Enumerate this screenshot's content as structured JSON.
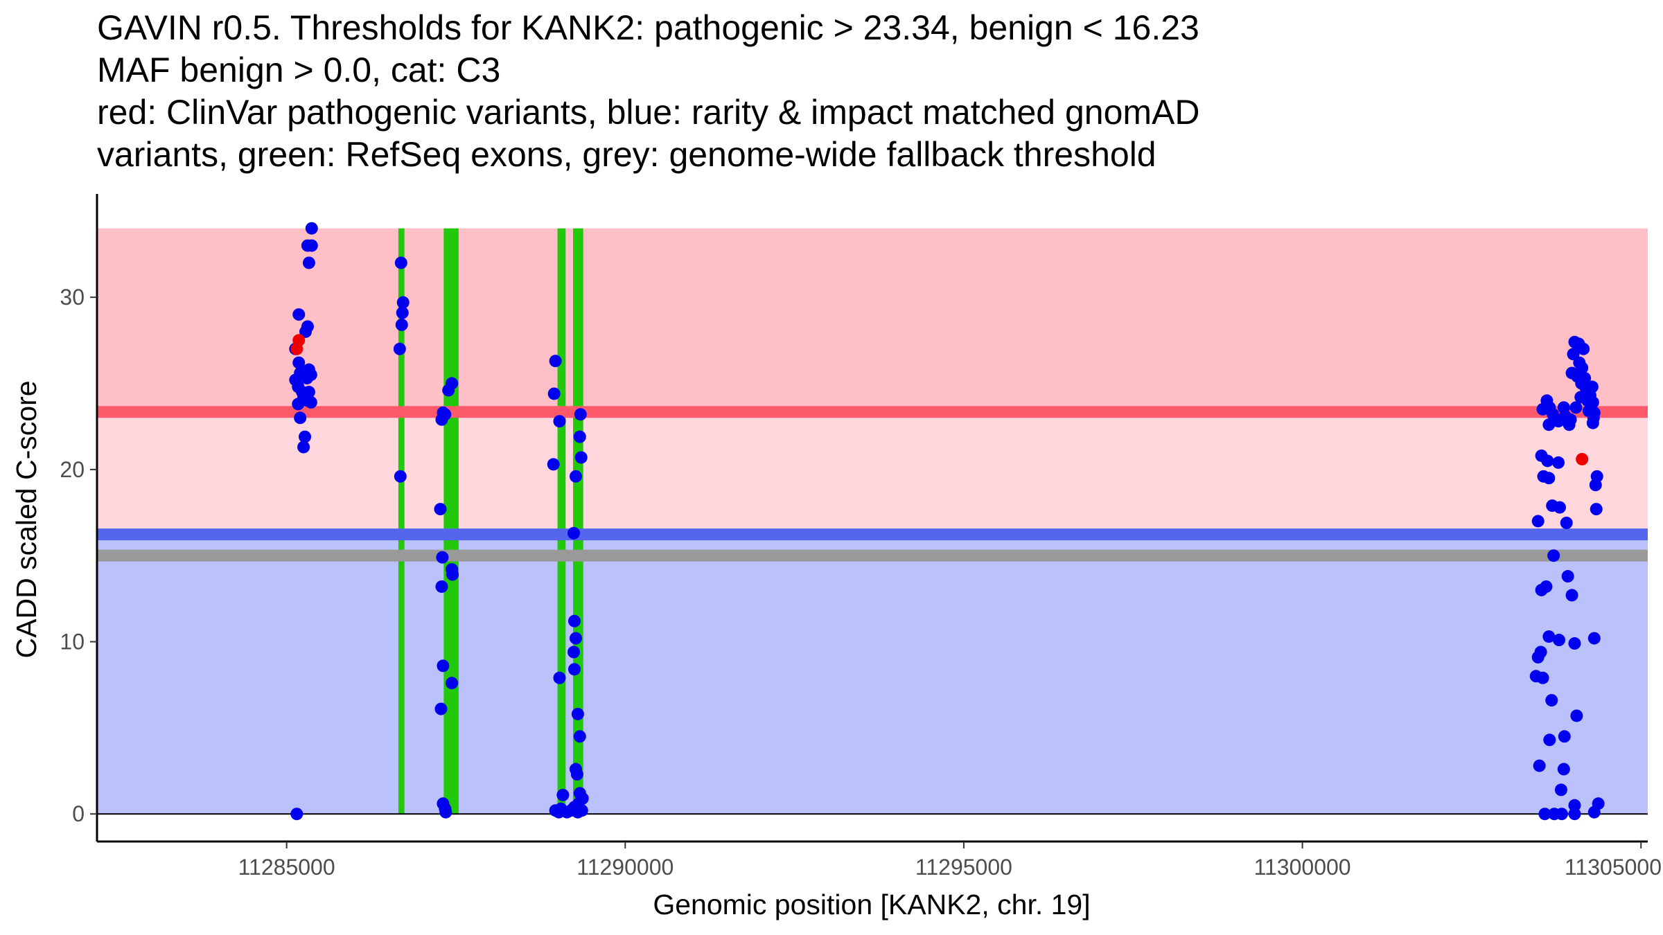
{
  "chart_data": {
    "type": "scatter",
    "title_lines": [
      "GAVIN r0.5. Thresholds for KANK2: pathogenic > 23.34, benign < 16.23",
      "MAF benign > 0.0, cat: C3",
      "red: ClinVar pathogenic variants, blue: rarity & impact matched gnomAD",
      "variants, green: RefSeq exons, grey: genome-wide fallback threshold"
    ],
    "xlabel": "Genomic position [KANK2, chr. 19]",
    "ylabel": "CADD scaled C-score",
    "xlim": [
      11282200,
      11305100
    ],
    "ylim": [
      -1.6,
      36.0
    ],
    "x_ticks": [
      11285000,
      11290000,
      11295000,
      11300000,
      11305000
    ],
    "x_tick_labels": [
      "11285000",
      "11290000",
      "11295000",
      "11300000",
      "11305000"
    ],
    "y_ticks": [
      0,
      10,
      20,
      30
    ],
    "y_tick_labels": [
      "0",
      "10",
      "20",
      "30"
    ],
    "grid": false,
    "thresholds": {
      "pathogenic": 23.34,
      "benign": 16.23,
      "genome_wide_fallback": 15.0,
      "max": 34.0
    },
    "colors": {
      "pathogenic_region": "#ffbfc6",
      "intermediate_region": "#ffd7dd",
      "benign_region": "#bbc1fa",
      "pathogenic_line": "#ff5a6b",
      "benign_line": "#5566ee",
      "fallback_line": "#999999",
      "exon": "#22c80a",
      "clinvar_point": "#ee0000",
      "gnomad_point": "#0000ee"
    },
    "exons": [
      {
        "start": 11286650,
        "end": 11286740
      },
      {
        "start": 11287320,
        "end": 11287540
      },
      {
        "start": 11289000,
        "end": 11289120
      },
      {
        "start": 11289230,
        "end": 11289380
      }
    ],
    "clinvar_pathogenic": [
      [
        11285180,
        27.5
      ],
      [
        11285150,
        27.0
      ],
      [
        11304130,
        20.6
      ]
    ],
    "gnomad_variants": [
      [
        11285370,
        34.0
      ],
      [
        11285310,
        33.0
      ],
      [
        11285370,
        33.0
      ],
      [
        11285330,
        32.0
      ],
      [
        11285180,
        29.0
      ],
      [
        11285310,
        28.3
      ],
      [
        11285280,
        28.0
      ],
      [
        11285130,
        27.0
      ],
      [
        11285180,
        26.2
      ],
      [
        11285330,
        25.8
      ],
      [
        11285200,
        25.6
      ],
      [
        11285360,
        25.5
      ],
      [
        11285300,
        25.3
      ],
      [
        11285130,
        25.2
      ],
      [
        11285170,
        24.8
      ],
      [
        11285330,
        24.5
      ],
      [
        11285230,
        24.5
      ],
      [
        11285250,
        24.2
      ],
      [
        11285310,
        24.0
      ],
      [
        11285360,
        23.9
      ],
      [
        11285170,
        23.8
      ],
      [
        11285200,
        23.0
      ],
      [
        11285270,
        21.9
      ],
      [
        11285250,
        21.3
      ],
      [
        11285150,
        0.0
      ],
      [
        11286690,
        32.0
      ],
      [
        11286720,
        29.7
      ],
      [
        11286710,
        29.1
      ],
      [
        11286700,
        28.4
      ],
      [
        11286670,
        27.0
      ],
      [
        11286680,
        19.6
      ],
      [
        11287440,
        25.0
      ],
      [
        11287390,
        24.6
      ],
      [
        11287310,
        23.3
      ],
      [
        11287340,
        23.2
      ],
      [
        11287290,
        22.9
      ],
      [
        11287270,
        17.7
      ],
      [
        11287300,
        14.9
      ],
      [
        11287440,
        14.2
      ],
      [
        11287450,
        13.9
      ],
      [
        11287290,
        13.2
      ],
      [
        11287310,
        8.6
      ],
      [
        11287440,
        7.6
      ],
      [
        11287280,
        6.1
      ],
      [
        11287310,
        0.6
      ],
      [
        11287340,
        0.3
      ],
      [
        11287350,
        0.1
      ],
      [
        11288970,
        26.3
      ],
      [
        11288950,
        24.4
      ],
      [
        11289030,
        22.8
      ],
      [
        11289340,
        23.2
      ],
      [
        11289270,
        19.6
      ],
      [
        11289330,
        21.9
      ],
      [
        11289350,
        20.7
      ],
      [
        11288940,
        20.3
      ],
      [
        11289240,
        16.3
      ],
      [
        11289250,
        11.2
      ],
      [
        11289270,
        10.2
      ],
      [
        11289240,
        9.4
      ],
      [
        11289250,
        8.4
      ],
      [
        11289030,
        7.9
      ],
      [
        11289300,
        5.8
      ],
      [
        11289330,
        4.5
      ],
      [
        11289270,
        2.6
      ],
      [
        11289290,
        2.3
      ],
      [
        11289080,
        1.1
      ],
      [
        11289330,
        1.2
      ],
      [
        11289370,
        0.9
      ],
      [
        11289310,
        0.6
      ],
      [
        11289050,
        0.3
      ],
      [
        11289250,
        0.4
      ],
      [
        11288970,
        0.2
      ],
      [
        11289020,
        0.1
      ],
      [
        11289140,
        0.1
      ],
      [
        11289200,
        0.2
      ],
      [
        11289300,
        0.1
      ],
      [
        11289360,
        0.2
      ],
      [
        11304020,
        27.4
      ],
      [
        11304080,
        27.3
      ],
      [
        11304150,
        27.0
      ],
      [
        11304000,
        26.7
      ],
      [
        11304090,
        26.2
      ],
      [
        11304130,
        25.9
      ],
      [
        11303980,
        25.6
      ],
      [
        11304060,
        25.4
      ],
      [
        11304170,
        25.3
      ],
      [
        11304120,
        25.0
      ],
      [
        11304190,
        24.7
      ],
      [
        11304280,
        24.8
      ],
      [
        11304250,
        24.3
      ],
      [
        11304110,
        24.2
      ],
      [
        11304210,
        24.0
      ],
      [
        11303610,
        24.0
      ],
      [
        11304290,
        23.9
      ],
      [
        11303550,
        23.5
      ],
      [
        11303650,
        23.6
      ],
      [
        11303860,
        23.6
      ],
      [
        11304040,
        23.6
      ],
      [
        11304230,
        23.4
      ],
      [
        11304310,
        23.3
      ],
      [
        11303700,
        23.2
      ],
      [
        11304300,
        23.0
      ],
      [
        11303880,
        23.1
      ],
      [
        11303960,
        22.9
      ],
      [
        11303780,
        22.8
      ],
      [
        11303940,
        22.6
      ],
      [
        11303640,
        22.6
      ],
      [
        11304290,
        22.7
      ],
      [
        11303530,
        20.8
      ],
      [
        11303620,
        20.5
      ],
      [
        11303780,
        20.4
      ],
      [
        11303560,
        19.6
      ],
      [
        11303640,
        19.5
      ],
      [
        11304350,
        19.6
      ],
      [
        11304330,
        19.1
      ],
      [
        11303690,
        17.9
      ],
      [
        11303800,
        17.8
      ],
      [
        11304340,
        17.7
      ],
      [
        11303480,
        17.0
      ],
      [
        11303900,
        16.9
      ],
      [
        11303710,
        15.0
      ],
      [
        11303600,
        13.2
      ],
      [
        11303530,
        13.0
      ],
      [
        11303920,
        13.8
      ],
      [
        11303980,
        12.7
      ],
      [
        11303640,
        10.3
      ],
      [
        11303790,
        10.1
      ],
      [
        11304020,
        9.9
      ],
      [
        11304310,
        10.2
      ],
      [
        11303520,
        9.4
      ],
      [
        11303480,
        9.1
      ],
      [
        11303450,
        8.0
      ],
      [
        11303550,
        7.9
      ],
      [
        11303680,
        6.6
      ],
      [
        11304050,
        5.7
      ],
      [
        11303650,
        4.3
      ],
      [
        11303870,
        4.5
      ],
      [
        11303500,
        2.8
      ],
      [
        11303860,
        2.6
      ],
      [
        11303820,
        1.4
      ],
      [
        11303720,
        0.0
      ],
      [
        11303580,
        0.0
      ],
      [
        11303830,
        0.0
      ],
      [
        11304020,
        0.5
      ],
      [
        11304020,
        0.0
      ],
      [
        11304310,
        0.1
      ],
      [
        11304370,
        0.6
      ]
    ]
  }
}
